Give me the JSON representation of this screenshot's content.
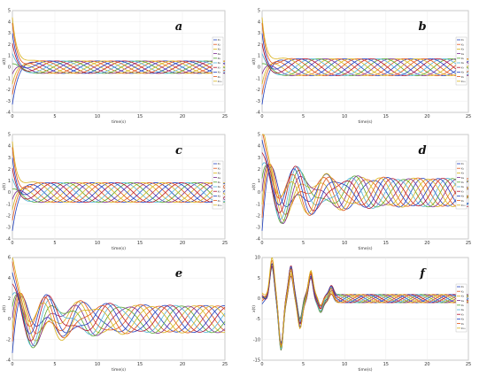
{
  "colors": [
    "#1f3fbf",
    "#e0551a",
    "#d8b21a",
    "#7a2a8e",
    "#55a630",
    "#4fb3d9",
    "#b5122b",
    "#1f3fbf",
    "#e0551a",
    "#d8b21a"
  ],
  "legend_entries": [
    "x₁",
    "x₂",
    "x₃",
    "x₄",
    "x₅",
    "x₆",
    "x₇",
    "x₈",
    "x₉",
    "x₁₀"
  ],
  "chart_data": [
    {
      "type": "line",
      "label": "a",
      "xlabel": "time(s)",
      "ylabel": "x(t)",
      "xlim": [
        0,
        25
      ],
      "ylim": [
        -4,
        5
      ],
      "xticks": [
        0,
        5,
        10,
        15,
        20,
        25
      ],
      "yticks": [
        -4,
        -3,
        -2,
        -1,
        0,
        1,
        2,
        3,
        4,
        5
      ],
      "grid": true,
      "legend": "right",
      "series_count": 10,
      "initial_values": [
        -3.3,
        -2.4,
        -1.5,
        -0.6,
        0.3,
        1.2,
        2.1,
        3.0,
        3.9,
        4.4
      ],
      "oscillation": {
        "center": 0,
        "amplitude": 0.55,
        "period_s": 8.0
      }
    },
    {
      "type": "line",
      "label": "b",
      "xlabel": "time(s)",
      "ylabel": "x(t)",
      "xlim": [
        0,
        25
      ],
      "ylim": [
        -4,
        5
      ],
      "xticks": [
        0,
        5,
        10,
        15,
        20,
        25
      ],
      "yticks": [
        -4,
        -3,
        -2,
        -1,
        0,
        1,
        2,
        3,
        4,
        5
      ],
      "grid": true,
      "legend": "right",
      "series_count": 10,
      "initial_values": [
        -3.3,
        -2.4,
        -1.5,
        -0.6,
        0.3,
        1.2,
        2.1,
        3.0,
        3.9,
        4.4
      ],
      "oscillation": {
        "center": 0,
        "amplitude": 0.75,
        "period_s": 8.0
      }
    },
    {
      "type": "line",
      "label": "c",
      "xlabel": "time(s)",
      "ylabel": "x(t)",
      "xlim": [
        0,
        25
      ],
      "ylim": [
        -4,
        5
      ],
      "xticks": [
        0,
        5,
        10,
        15,
        20,
        25
      ],
      "yticks": [
        -4,
        -3,
        -2,
        -1,
        0,
        1,
        2,
        3,
        4,
        5
      ],
      "grid": true,
      "legend": "right",
      "series_count": 10,
      "initial_values": [
        -3.3,
        -2.4,
        -1.5,
        -0.6,
        0.3,
        1.2,
        2.1,
        3.0,
        3.9,
        4.4
      ],
      "oscillation": {
        "center": 0,
        "amplitude": 0.85,
        "period_s": 7.5
      }
    },
    {
      "type": "line",
      "label": "d",
      "xlabel": "time(s)",
      "ylabel": "x(t)",
      "xlim": [
        0,
        25
      ],
      "ylim": [
        -4,
        5
      ],
      "xticks": [
        0,
        5,
        10,
        15,
        20,
        25
      ],
      "yticks": [
        -4,
        -3,
        -2,
        -1,
        0,
        1,
        2,
        3,
        4,
        5
      ],
      "grid": true,
      "legend": "right",
      "series_count": 10,
      "initial_values": [
        -3.3,
        -2.4,
        -1.5,
        -0.6,
        0.3,
        1.2,
        2.1,
        3.0,
        3.9,
        4.4
      ],
      "oscillation": {
        "center": 0,
        "amplitude": 1.2,
        "period_s": 6.0
      }
    },
    {
      "type": "line",
      "label": "e",
      "xlabel": "time(s)",
      "ylabel": "x(t)",
      "xlim": [
        0,
        25
      ],
      "ylim": [
        -4,
        6
      ],
      "xticks": [
        0,
        5,
        10,
        15,
        20,
        25
      ],
      "yticks": [
        -4,
        -2,
        0,
        2,
        4,
        6
      ],
      "grid": true,
      "legend": "none",
      "series_count": 10,
      "initial_values": [
        -3.3,
        -2.4,
        -1.5,
        -0.6,
        0.3,
        1.2,
        2.1,
        3.0,
        3.9,
        4.4
      ],
      "oscillation": {
        "center": 0,
        "amplitude": 1.3,
        "period_s": 7.0
      }
    },
    {
      "type": "line",
      "label": "f",
      "xlabel": "time(s)",
      "ylabel": "x(t)",
      "xlim": [
        0,
        25
      ],
      "ylim": [
        -15,
        10
      ],
      "xticks": [
        0,
        5,
        10,
        15,
        20,
        25
      ],
      "yticks": [
        -15,
        -10,
        -5,
        0,
        5,
        10
      ],
      "grid": true,
      "legend": "right",
      "series_count": 10,
      "initial_values": [
        -3.3,
        -2.4,
        -1.5,
        -0.6,
        0.3,
        1.2,
        2.1,
        3.0,
        3.9,
        4.4
      ],
      "oscillation": {
        "center": 0,
        "amplitude": 1.0,
        "period_s": 5.0
      },
      "peaks": [
        {
          "x": 1.2,
          "y": 8.5
        },
        {
          "x": 2.3,
          "y": -12
        },
        {
          "x": 3.5,
          "y": 7
        },
        {
          "x": 4.6,
          "y": -6
        },
        {
          "x": 5.9,
          "y": 6
        },
        {
          "x": 7.1,
          "y": -2.5
        },
        {
          "x": 8.4,
          "y": 2.2
        }
      ]
    }
  ]
}
